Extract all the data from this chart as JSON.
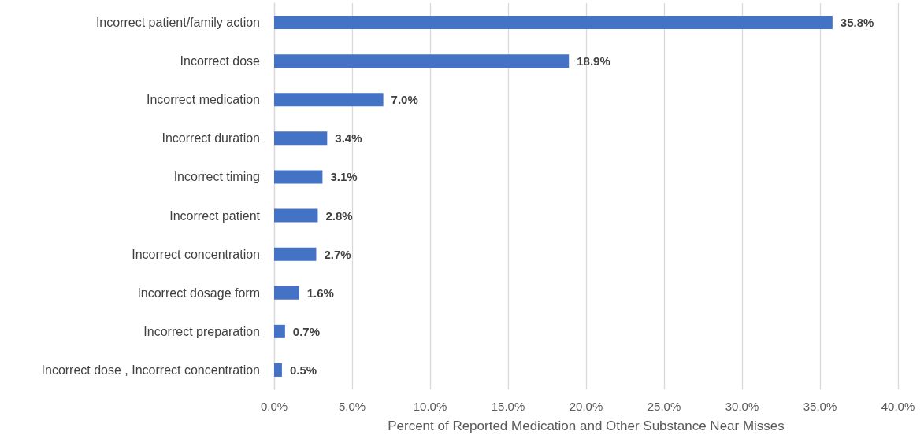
{
  "chart_data": {
    "type": "bar",
    "orientation": "horizontal",
    "xlabel": "Percent of Reported Medication and Other Substance Near Misses",
    "categories": [
      "Incorrect patient/family action",
      "Incorrect dose",
      "Incorrect medication",
      "Incorrect duration",
      "Incorrect timing",
      "Incorrect patient",
      "Incorrect concentration",
      "Incorrect dosage form",
      "Incorrect preparation",
      "Incorrect dose , Incorrect concentration"
    ],
    "values": [
      35.8,
      18.9,
      7.0,
      3.4,
      3.1,
      2.8,
      2.7,
      1.6,
      0.7,
      0.5
    ],
    "value_labels": [
      "35.8%",
      "18.9%",
      "7.0%",
      "3.4%",
      "3.1%",
      "2.8%",
      "2.7%",
      "1.6%",
      "0.7%",
      "0.5%"
    ],
    "color": "#4472c4",
    "xlim": [
      0,
      40
    ],
    "xticks": [
      {
        "value": 0,
        "label": "0.0%"
      },
      {
        "value": 5,
        "label": "5.0%"
      },
      {
        "value": 10,
        "label": "10.0%"
      },
      {
        "value": 15,
        "label": "15.0%"
      },
      {
        "value": 20,
        "label": "20.0%"
      },
      {
        "value": 25,
        "label": "25.0%"
      },
      {
        "value": 30,
        "label": "30.0%"
      },
      {
        "value": 35,
        "label": "35.0%"
      },
      {
        "value": 40,
        "label": "40.0%"
      }
    ],
    "grid": "x"
  }
}
